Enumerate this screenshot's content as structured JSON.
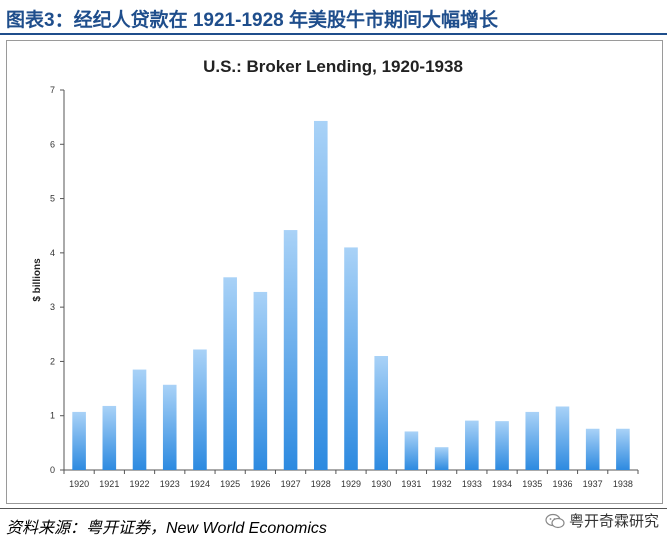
{
  "header": {
    "title": "图表3：经纪人贷款在 1921-1928 年美股牛市期间大幅增长"
  },
  "source": {
    "text": "资料来源：粤开证券，New World Economics"
  },
  "watermark": {
    "text": "粤开奇霖研究",
    "icon": "wechat-icon"
  },
  "chart_data": {
    "type": "bar",
    "title": "U.S.: Broker Lending, 1920-1938",
    "xlabel": "",
    "ylabel": "$ billions",
    "categories": [
      "1920",
      "1921",
      "1922",
      "1923",
      "1924",
      "1925",
      "1926",
      "1927",
      "1928",
      "1929",
      "1930",
      "1931",
      "1932",
      "1933",
      "1934",
      "1935",
      "1936",
      "1937",
      "1938"
    ],
    "values": [
      1.07,
      1.18,
      1.85,
      1.57,
      2.22,
      3.55,
      3.28,
      4.42,
      6.43,
      4.1,
      2.1,
      0.71,
      0.42,
      0.91,
      0.9,
      1.07,
      1.17,
      0.76,
      0.76
    ],
    "ylim": [
      0,
      7
    ],
    "yticks": [
      0,
      1,
      2,
      3,
      4,
      5,
      6,
      7
    ],
    "grid": false,
    "legend": "none",
    "colors": {
      "bar_top": "#a9d2f7",
      "bar_bottom": "#2d8ae0",
      "axis": "#555555"
    }
  }
}
